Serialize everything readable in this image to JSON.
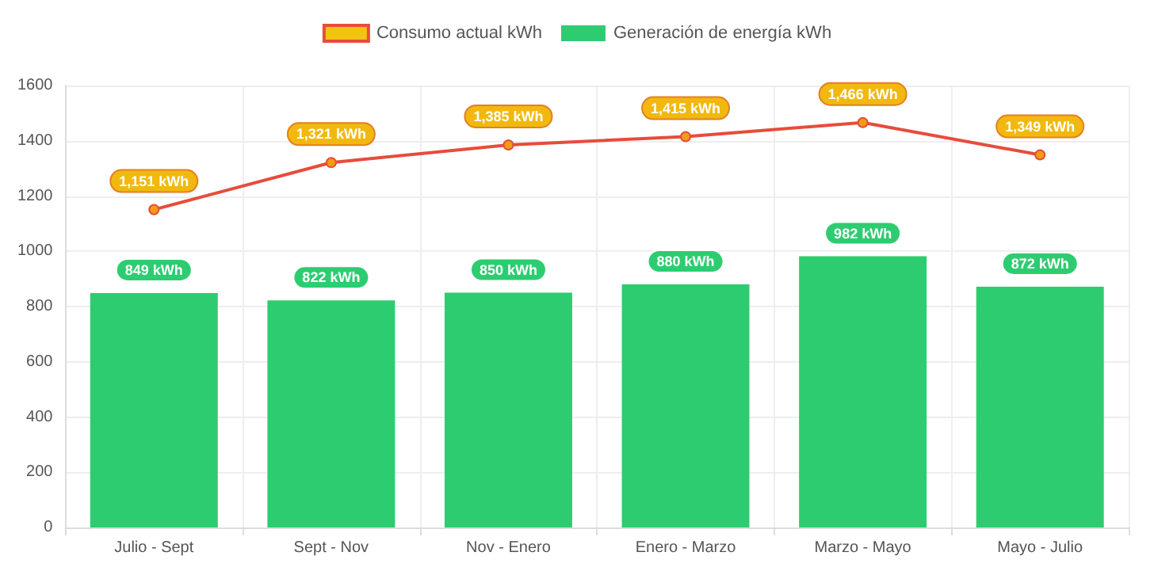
{
  "chart_data": {
    "type": "bar",
    "categories": [
      "Julio - Sept",
      "Sept - Nov",
      "Nov - Enero",
      "Enero - Marzo",
      "Marzo - Mayo",
      "Mayo - Julio"
    ],
    "series": [
      {
        "name": "Consumo actual kWh",
        "type": "line",
        "color": "#e74c3c",
        "values": [
          1151,
          1321,
          1385,
          1415,
          1466,
          1349
        ],
        "value_labels": [
          "1,151 kWh",
          "1,321 kWh",
          "1,385 kWh",
          "1,415 kWh",
          "1,466 kWh",
          "1,349 kWh"
        ]
      },
      {
        "name": "Generación de energía kWh",
        "color": "#2ecc71",
        "values": [
          849,
          822,
          850,
          880,
          982,
          872
        ],
        "value_labels": [
          "849 kWh",
          "822 kWh",
          "850 kWh",
          "880 kWh",
          "982 kWh",
          "872 kWh"
        ]
      }
    ],
    "ylim": [
      0,
      1600
    ],
    "yticks": [
      0,
      200,
      400,
      600,
      800,
      1000,
      1200,
      1400,
      1600
    ],
    "grid": true,
    "legend": "top",
    "marker": "circle",
    "line_style": "solid"
  }
}
